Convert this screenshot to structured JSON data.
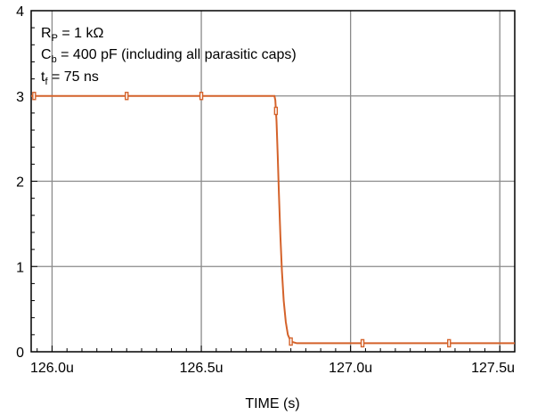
{
  "chart_data": {
    "type": "line",
    "title": "",
    "xlabel": "TIME (s)",
    "ylabel": "",
    "xlim": [
      125.93,
      127.55
    ],
    "ylim": [
      0,
      4
    ],
    "x_ticks": [
      126.0,
      126.5,
      127.0,
      127.5
    ],
    "x_tick_labels": [
      "126.0u",
      "126.5u",
      "127.0u",
      "127.5u"
    ],
    "y_ticks": [
      0,
      1,
      2,
      3,
      4
    ],
    "y_tick_labels": [
      "0",
      "1",
      "2",
      "3",
      "4"
    ],
    "grid": true,
    "series": [
      {
        "color": "#d4622a",
        "x": [
          125.93,
          126.2,
          126.5,
          126.745,
          126.748,
          126.752,
          126.756,
          126.76,
          126.765,
          126.77,
          126.776,
          126.783,
          126.79,
          126.8,
          126.82,
          126.9,
          127.0,
          127.2,
          127.4,
          127.55
        ],
        "y": [
          3.0,
          3.0,
          3.0,
          3.0,
          2.95,
          2.7,
          2.3,
          1.85,
          1.35,
          0.95,
          0.6,
          0.35,
          0.2,
          0.12,
          0.1,
          0.1,
          0.1,
          0.1,
          0.1,
          0.1
        ],
        "markers_x": [
          125.94,
          126.25,
          126.5,
          126.75,
          126.8,
          127.04,
          127.33
        ]
      }
    ],
    "annotations": {
      "rp": {
        "main": "R",
        "sub": "P",
        "rest": " = 1 kΩ"
      },
      "cb": {
        "main": "C",
        "sub": "b",
        "rest": " = 400 pF (including all parasitic caps)"
      },
      "tf": {
        "main": "t",
        "sub": "f",
        "rest": " = 75 ns"
      }
    }
  }
}
